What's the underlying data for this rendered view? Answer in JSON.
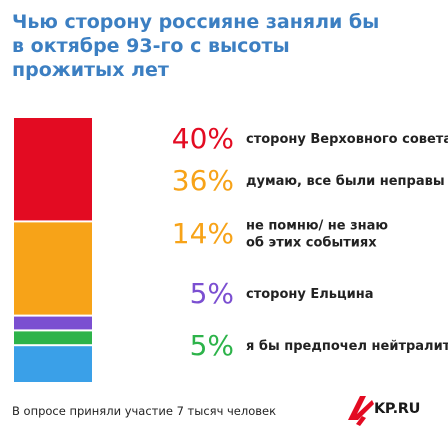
{
  "title_lines": [
    "Чью сторону россияне заняли бы",
    "в октябре 93-го с высоты",
    "прожитых лет"
  ],
  "footer": "В опросе приняли участие 7 тысяч человек",
  "logo": {
    "text": "KP.RU",
    "icon": "kp-bird-icon"
  },
  "chart_data": {
    "type": "bar",
    "title": "Чью сторону россияне заняли бы в октябре 93-го с высоты прожитых лет",
    "series": [
      {
        "value": 40,
        "value_label": "40%",
        "label_lines": [
          "сторону Верховного совета"
        ],
        "color": "#e30b22"
      },
      {
        "value": 36,
        "value_label": "36%",
        "label_lines": [
          "думаю, все были неправы"
        ],
        "color": "#f7a318"
      },
      {
        "value": 14,
        "value_label": "14%",
        "label_lines": [
          "не помню/ не знаю",
          "об этих событиях"
        ],
        "color": "#f7a318"
      },
      {
        "value": 5,
        "value_label": "5%",
        "label_lines": [
          "сторону Ельцина"
        ],
        "color": "#7b4fd1"
      },
      {
        "value": 5,
        "value_label": "5%",
        "label_lines": [
          "я бы предпочел нейтралитет"
        ],
        "color": "#2db34a"
      }
    ],
    "stack_order": [
      0,
      1,
      3,
      4,
      2
    ],
    "stack_colors": [
      "#e30b22",
      "#f7a318",
      "#7b4fd1",
      "#2db34a",
      "#3aa0e8"
    ]
  }
}
